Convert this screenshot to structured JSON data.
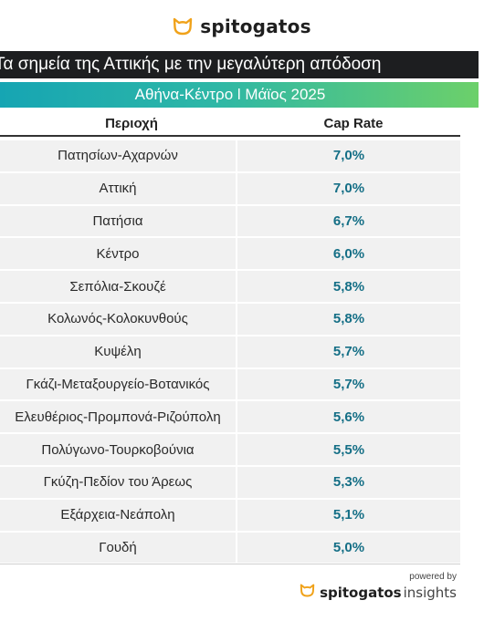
{
  "brand": {
    "name": "spitogatos",
    "icon": "cat-face-icon",
    "accent_color": "#f0a21a"
  },
  "header": {
    "title": "Τα σημεία της Αττικής με την μεγαλύτερη απόδοση",
    "subtitle": "Αθήνα-Κέντρο l Μάϊος 2025"
  },
  "table": {
    "columns": [
      "Περιοχή",
      "Cap Rate"
    ],
    "rows": [
      {
        "area": "Πατησίων-Αχαρνών",
        "cap_rate": "7,0%"
      },
      {
        "area": "Αττική",
        "cap_rate": "7,0%"
      },
      {
        "area": "Πατήσια",
        "cap_rate": "6,7%"
      },
      {
        "area": "Κέντρο",
        "cap_rate": "6,0%"
      },
      {
        "area": "Σεπόλια-Σκουζέ",
        "cap_rate": "5,8%"
      },
      {
        "area": "Κολωνός-Κολοκυνθούς",
        "cap_rate": "5,8%"
      },
      {
        "area": "Κυψέλη",
        "cap_rate": "5,7%"
      },
      {
        "area": "Γκάζι-Μεταξουργείο-Βοτανικός",
        "cap_rate": "5,7%"
      },
      {
        "area": "Ελευθέριος-Προμπονά-Ριζούπολη",
        "cap_rate": "5,6%"
      },
      {
        "area": "Πολύγωνο-Τουρκοβούνια",
        "cap_rate": "5,5%"
      },
      {
        "area": "Γκύζη-Πεδίον του Άρεως",
        "cap_rate": "5,3%"
      },
      {
        "area": "Εξάρχεια-Νεάπολη",
        "cap_rate": "5,1%"
      },
      {
        "area": "Γουδή",
        "cap_rate": "5,0%"
      }
    ]
  },
  "footer": {
    "powered_by": "powered by",
    "brand": "spitogatos",
    "product": "insights"
  },
  "colors": {
    "title_bar_bg": "#1d1e20",
    "gradient_start": "#16a5b3",
    "gradient_end": "#6cd06a",
    "cap_rate_text": "#156f86",
    "row_bg": "#f1f1f1"
  }
}
